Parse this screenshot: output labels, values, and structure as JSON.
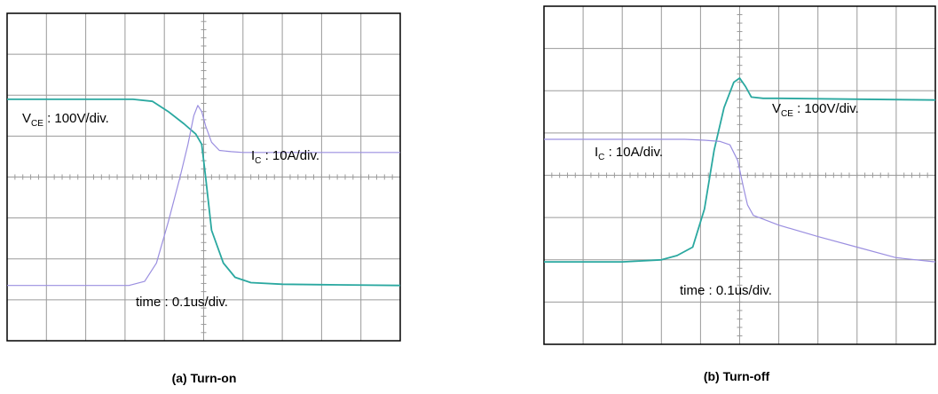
{
  "colors": {
    "grid": "#9a9a9a",
    "frame": "#000000",
    "vce_trace": "#2aa8a0",
    "ic_trace": "#9b8fe0",
    "background": "#ffffff"
  },
  "chart_data": [
    {
      "type": "line",
      "title": "",
      "caption": "(a) Turn-on",
      "xlim": [
        0,
        10
      ],
      "ylim": [
        0,
        8
      ],
      "grid": true,
      "x_divisions": 10,
      "y_divisions": 8,
      "annotations": {
        "vce": {
          "main": "V",
          "sub": "CE",
          "rest": " : 100V/div."
        },
        "ic": {
          "main": "I",
          "sub": "C",
          "rest": " : 10A/div."
        },
        "time": {
          "text": "time : 0.1us/div."
        }
      },
      "series": [
        {
          "name": "VCE",
          "x": [
            0,
            3.2,
            3.7,
            4.1,
            4.5,
            4.8,
            4.95,
            5.05,
            5.2,
            5.5,
            5.8,
            6.2,
            7,
            8,
            10
          ],
          "y": [
            5.9,
            5.9,
            5.85,
            5.6,
            5.3,
            5.05,
            4.8,
            4.0,
            2.7,
            1.9,
            1.55,
            1.42,
            1.38,
            1.37,
            1.35
          ]
        },
        {
          "name": "IC",
          "x": [
            0,
            3.1,
            3.5,
            3.8,
            4.1,
            4.4,
            4.6,
            4.75,
            4.85,
            4.95,
            5.05,
            5.2,
            5.4,
            5.7,
            6,
            7,
            10
          ],
          "y": [
            1.35,
            1.35,
            1.45,
            1.9,
            2.9,
            4.0,
            4.8,
            5.5,
            5.75,
            5.6,
            5.25,
            4.85,
            4.65,
            4.62,
            4.6,
            4.6,
            4.6
          ]
        }
      ]
    },
    {
      "type": "line",
      "title": "",
      "caption": "(b) Turn-off",
      "xlim": [
        0,
        10
      ],
      "ylim": [
        0,
        8
      ],
      "grid": true,
      "x_divisions": 10,
      "y_divisions": 8,
      "annotations": {
        "vce": {
          "main": "V",
          "sub": "CE",
          "rest": " : 100V/div."
        },
        "ic": {
          "main": "I",
          "sub": "C",
          "rest": " : 10A/div."
        },
        "time": {
          "text": "time : 0.1us/div."
        }
      },
      "series": [
        {
          "name": "VCE",
          "x": [
            0,
            2,
            3,
            3.4,
            3.8,
            4.1,
            4.35,
            4.6,
            4.85,
            5.0,
            5.15,
            5.3,
            5.6,
            6,
            8,
            10
          ],
          "y": [
            1.95,
            1.95,
            2.0,
            2.1,
            2.3,
            3.2,
            4.6,
            5.6,
            6.2,
            6.3,
            6.1,
            5.85,
            5.82,
            5.82,
            5.8,
            5.78
          ]
        },
        {
          "name": "IC",
          "x": [
            0,
            3,
            3.6,
            4.1,
            4.5,
            4.75,
            4.95,
            5.1,
            5.2,
            5.35,
            6,
            7,
            8,
            9,
            10
          ],
          "y": [
            4.85,
            4.85,
            4.85,
            4.83,
            4.8,
            4.72,
            4.35,
            3.7,
            3.3,
            3.05,
            2.82,
            2.55,
            2.3,
            2.05,
            1.95
          ]
        }
      ]
    }
  ]
}
